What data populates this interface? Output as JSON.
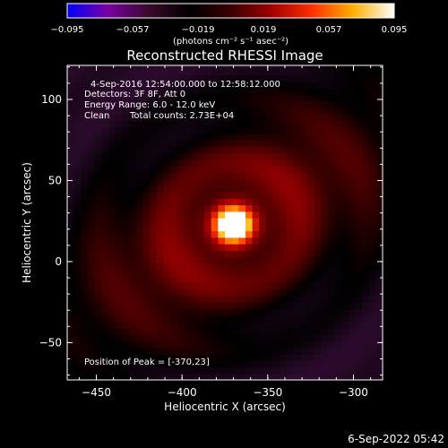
{
  "colorbar": {
    "tick_labels": [
      "-0.095",
      "-0.057",
      "-0.019",
      "0.019",
      "0.057",
      "0.095"
    ],
    "unit_label": "(photons cm⁻² s⁻¹ asec⁻²)",
    "range": [
      -0.095,
      0.095
    ],
    "colors": [
      "#0000ff",
      "#7a00a0",
      "#3a0a2a",
      "#000000",
      "#3a0000",
      "#a00000",
      "#ff3000",
      "#ffb000",
      "#ffffff"
    ]
  },
  "title": "Reconstructed RHESSI Image",
  "annotations": {
    "time_range": "4-Sep-2016 12:54:00.000 to 12:58:12.000",
    "detectors": "Detectors: 3F 8F, Att 0",
    "energy": "Energy Range: 6.0 - 12.0 keV",
    "clean_label": "Clean",
    "total_counts": "Total counts: 2.73E+04",
    "peak": "Position of Peak = [-370,23]"
  },
  "footer": {
    "timestamp": "6-Sep-2022 05:42"
  },
  "chart_data": {
    "type": "heatmap",
    "title": "Reconstructed RHESSI Image",
    "xlabel": "Heliocentric X (arcsec)",
    "ylabel": "Heliocentric Y (arcsec)",
    "xlim": [
      -467,
      -283
    ],
    "ylim": [
      -73,
      121
    ],
    "xticks": [
      -450,
      -400,
      -350,
      -300
    ],
    "yticks": [
      -50,
      0,
      50,
      100
    ],
    "xtick_labels": [
      "−450",
      "−400",
      "−350",
      "−300"
    ],
    "ytick_labels": [
      "−50",
      "0",
      "50",
      "100"
    ],
    "source": {
      "x": -370,
      "y": 23,
      "peak_value": 0.095,
      "sigma_arcsec": 8
    },
    "background_level": 0.02,
    "edge_level": -0.02,
    "grid": false
  }
}
